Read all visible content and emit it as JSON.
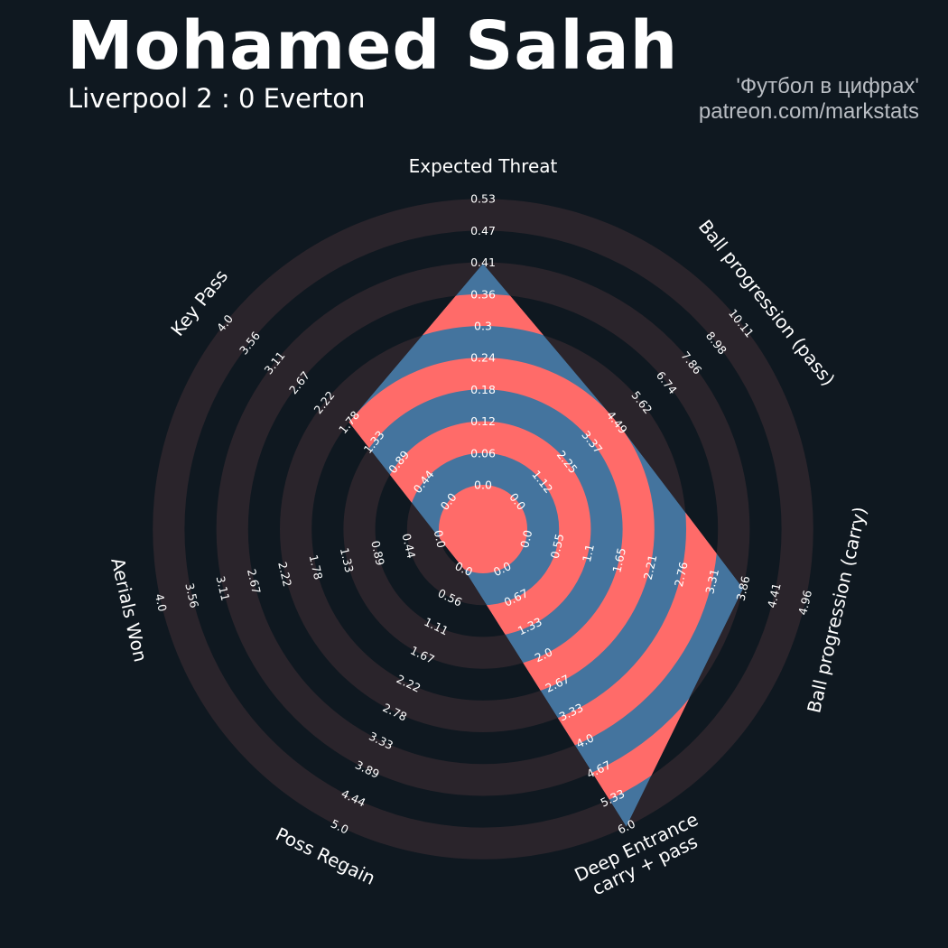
{
  "header": {
    "player_name": "Mohamed Salah",
    "match": "Liverpool 2 : 0 Everton",
    "credit_line1": "'Футбол в цифрах'",
    "credit_line2": "patreon.com/markstats"
  },
  "colors": {
    "background": "#0f1820",
    "ring_band": "#2a242b",
    "player_blue": "#44749e",
    "player_red": "#ff6b69"
  },
  "chart_data": {
    "type": "radar",
    "title": "Mohamed Salah",
    "subtitle": "Liverpool 2 : 0 Everton",
    "legend": "none",
    "grid": "concentric bands",
    "params": [
      {
        "name": "Expected Threat",
        "label_lines": [
          "Expected Threat"
        ],
        "value": 0.41,
        "range": [
          0.0,
          0.53
        ],
        "ticks": [
          "0.0",
          "0.06",
          "0.12",
          "0.18",
          "0.24",
          "0.3",
          "0.36",
          "0.41",
          "0.47",
          "0.53"
        ]
      },
      {
        "name": "Ball progression (pass)",
        "label_lines": [
          "Ball progression (pass)"
        ],
        "value": 4.49,
        "range": [
          0.0,
          10.11
        ],
        "ticks": [
          "0.0",
          "1.12",
          "2.25",
          "3.37",
          "4.49",
          "5.62",
          "6.74",
          "7.86",
          "8.98",
          "10.11"
        ]
      },
      {
        "name": "Ball progression (carry)",
        "label_lines": [
          "Ball progression (carry)"
        ],
        "value": 3.86,
        "range": [
          0.0,
          4.96
        ],
        "ticks": [
          "0.0",
          "0.55",
          "1.1",
          "1.65",
          "2.21",
          "2.76",
          "3.31",
          "3.86",
          "4.41",
          "4.96"
        ]
      },
      {
        "name": "Deep Entrance carry + pass",
        "label_lines": [
          "Deep Entrance",
          "carry + pass"
        ],
        "value": 6.0,
        "range": [
          0.0,
          6.0
        ],
        "ticks": [
          "0.0",
          "0.67",
          "1.33",
          "2.0",
          "2.67",
          "3.33",
          "4.0",
          "4.67",
          "5.33",
          "6.0"
        ]
      },
      {
        "name": "Poss Regain",
        "label_lines": [
          "Poss Regain"
        ],
        "value": 0.0,
        "range": [
          0.0,
          5.0
        ],
        "ticks": [
          "0.0",
          "0.56",
          "1.11",
          "1.67",
          "2.22",
          "2.78",
          "3.33",
          "3.89",
          "4.44",
          "5.0"
        ]
      },
      {
        "name": "Aerials Won",
        "label_lines": [
          "Aerials Won"
        ],
        "value": 0.0,
        "range": [
          0.0,
          4.0
        ],
        "ticks": [
          "0.0",
          "0.44",
          "0.89",
          "1.33",
          "1.78",
          "2.22",
          "2.67",
          "3.11",
          "3.56",
          "4.0"
        ]
      },
      {
        "name": "Key Pass",
        "label_lines": [
          "Key Pass"
        ],
        "value": 1.78,
        "range": [
          0.0,
          4.0
        ],
        "ticks": [
          "0.0",
          "0.44",
          "0.89",
          "1.33",
          "1.78",
          "2.22",
          "2.67",
          "3.11",
          "3.56",
          "4.0"
        ]
      }
    ]
  }
}
